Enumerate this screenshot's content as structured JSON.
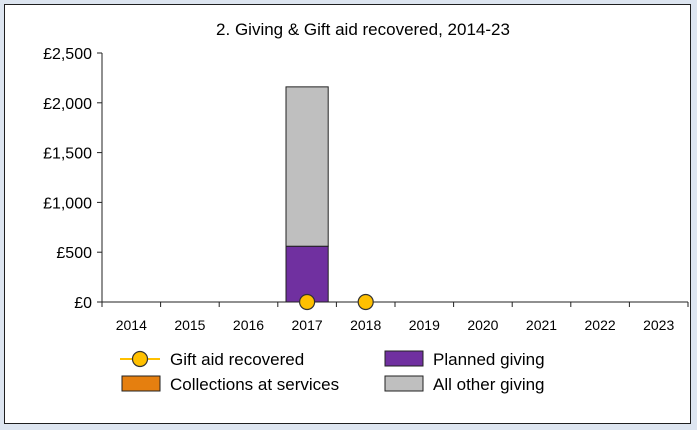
{
  "chart_data": {
    "type": "bar",
    "stacked": true,
    "title": "2. Giving & Gift aid recovered, 2014-23",
    "categories": [
      "2014",
      "2015",
      "2016",
      "2017",
      "2018",
      "2019",
      "2020",
      "2021",
      "2022",
      "2023"
    ],
    "ylim": [
      0,
      2500
    ],
    "yticks": [
      0,
      500,
      1000,
      1500,
      2000,
      2500
    ],
    "ytick_labels": [
      "£0",
      "£500",
      "£1,000",
      "£1,500",
      "£2,000",
      "£2,500"
    ],
    "grid": false,
    "legend_position": "bottom",
    "series": [
      {
        "name": "Planned giving",
        "kind": "bar",
        "color": "#7030a0",
        "values": [
          null,
          null,
          null,
          560,
          null,
          null,
          null,
          null,
          null,
          null
        ]
      },
      {
        "name": "Collections at services",
        "kind": "bar",
        "color": "#e57f0f",
        "values": [
          null,
          null,
          null,
          0,
          null,
          null,
          null,
          null,
          null,
          null
        ]
      },
      {
        "name": "All other giving",
        "kind": "bar",
        "color": "#bfbfbf",
        "values": [
          null,
          null,
          null,
          1600,
          null,
          null,
          null,
          null,
          null,
          null
        ]
      },
      {
        "name": "Gift aid recovered",
        "kind": "line-marker",
        "color": "#ffc000",
        "values": [
          null,
          null,
          null,
          0,
          0,
          null,
          null,
          null,
          null,
          null
        ]
      }
    ],
    "legend": [
      {
        "label": "Gift aid recovered",
        "symbol": "line-marker",
        "color": "#ffc000"
      },
      {
        "label": "Planned giving",
        "symbol": "box",
        "color": "#7030a0"
      },
      {
        "label": "Collections at services",
        "symbol": "box",
        "color": "#e57f0f"
      },
      {
        "label": "All other giving",
        "symbol": "box",
        "color": "#bfbfbf"
      }
    ]
  }
}
